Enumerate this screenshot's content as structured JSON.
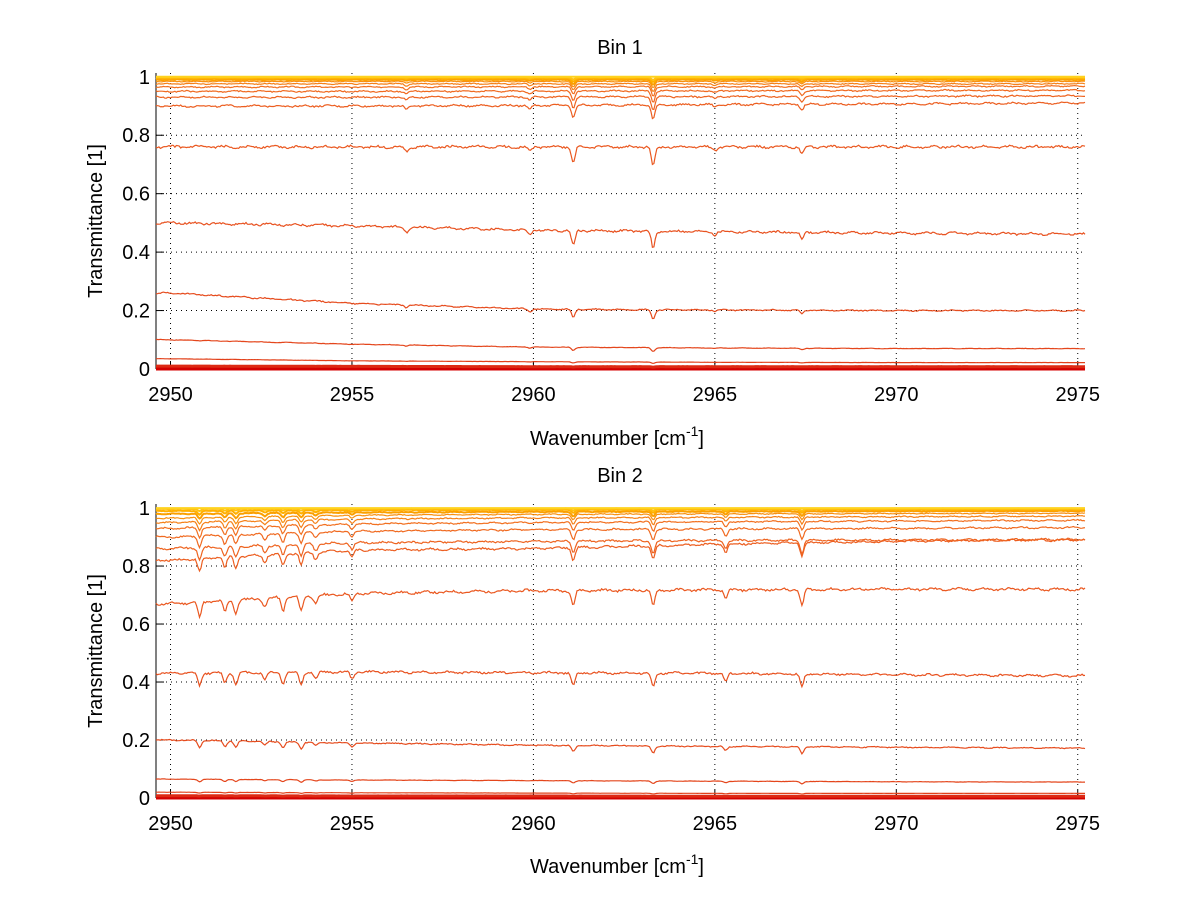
{
  "chart_data": [
    {
      "type": "line",
      "title": "Bin 1",
      "xlabel": "Wavenumber [cm",
      "xlabel_sup": "-1",
      "xlabel_end": "]",
      "ylabel": "Transmittance [1]",
      "xlim": [
        2949.6,
        2975.2
      ],
      "ylim": [
        0,
        1.013
      ],
      "xticks": [
        2950,
        2955,
        2960,
        2965,
        2970,
        2975
      ],
      "yticks": [
        0,
        0.2,
        0.4,
        0.6,
        0.8,
        1
      ],
      "ytick_labels": [
        "0",
        "0.2",
        "0.4",
        "0.6",
        "0.8",
        "1"
      ],
      "grid": true,
      "x_knots": [
        2950,
        2955,
        2960,
        2965,
        2970,
        2975
      ],
      "dips": [
        [
          2956.5,
          0.3
        ],
        [
          2959.9,
          0.3
        ],
        [
          2961.1,
          1.0
        ],
        [
          2963.3,
          1.2
        ],
        [
          2965.0,
          0.2
        ],
        [
          2967.4,
          0.45
        ]
      ],
      "series": [
        {
          "name": "s1",
          "color": "#ffd21e",
          "values": [
            1.0,
            1.0,
            1.0,
            1.0,
            1.0,
            1.0
          ]
        },
        {
          "name": "s2",
          "color": "#ffc010",
          "values": [
            0.998,
            0.998,
            0.998,
            0.998,
            0.998,
            0.998
          ]
        },
        {
          "name": "s3",
          "color": "#ffb000",
          "values": [
            0.995,
            0.995,
            0.995,
            0.995,
            0.995,
            0.995
          ]
        },
        {
          "name": "s4",
          "color": "#fba000",
          "values": [
            0.99,
            0.99,
            0.99,
            0.99,
            0.99,
            0.99
          ]
        },
        {
          "name": "s5",
          "color": "#f89010",
          "values": [
            0.984,
            0.984,
            0.984,
            0.984,
            0.984,
            0.984
          ]
        },
        {
          "name": "s6",
          "color": "#f58018",
          "values": [
            0.976,
            0.976,
            0.976,
            0.976,
            0.976,
            0.976
          ]
        },
        {
          "name": "s7",
          "color": "#f27020",
          "values": [
            0.965,
            0.965,
            0.966,
            0.966,
            0.967,
            0.968
          ]
        },
        {
          "name": "s8",
          "color": "#f06a20",
          "values": [
            0.95,
            0.95,
            0.951,
            0.952,
            0.953,
            0.954
          ]
        },
        {
          "name": "s9",
          "color": "#ee6420",
          "values": [
            0.93,
            0.93,
            0.931,
            0.932,
            0.933,
            0.935
          ]
        },
        {
          "name": "s10",
          "color": "#ec5e20",
          "values": [
            0.9,
            0.9,
            0.902,
            0.905,
            0.907,
            0.91
          ]
        },
        {
          "name": "s11",
          "color": "#ea5820",
          "values": [
            0.76,
            0.76,
            0.76,
            0.76,
            0.76,
            0.76
          ]
        },
        {
          "name": "s12",
          "color": "#e85220",
          "values": [
            0.5,
            0.49,
            0.475,
            0.47,
            0.465,
            0.462
          ]
        },
        {
          "name": "s13",
          "color": "#e64c1e",
          "values": [
            0.26,
            0.225,
            0.205,
            0.202,
            0.2,
            0.2
          ]
        },
        {
          "name": "s14",
          "color": "#e4461c",
          "values": [
            0.1,
            0.085,
            0.075,
            0.072,
            0.07,
            0.07
          ]
        },
        {
          "name": "s15",
          "color": "#e2401a",
          "values": [
            0.035,
            0.028,
            0.025,
            0.023,
            0.022,
            0.022
          ]
        },
        {
          "name": "s16",
          "color": "#dd2a14",
          "values": [
            0.01,
            0.009,
            0.008,
            0.008,
            0.008,
            0.008
          ]
        },
        {
          "name": "s17",
          "color": "#d40000",
          "values": [
            0.0,
            0.0,
            0.0,
            0.0,
            0.0,
            0.0
          ]
        }
      ]
    },
    {
      "type": "line",
      "title": "Bin 2",
      "xlabel": "Wavenumber [cm",
      "xlabel_sup": "-1",
      "xlabel_end": "]",
      "ylabel": "Transmittance [1]",
      "xlim": [
        2949.6,
        2975.2
      ],
      "ylim": [
        0,
        1.014
      ],
      "xticks": [
        2950,
        2955,
        2960,
        2965,
        2970,
        2975
      ],
      "yticks": [
        0,
        0.2,
        0.4,
        0.6,
        0.8,
        1
      ],
      "ytick_labels": [
        "0",
        "0.2",
        "0.4",
        "0.6",
        "0.8",
        "1"
      ],
      "grid": true,
      "x_knots": [
        2950,
        2955,
        2960,
        2965,
        2970,
        2975
      ],
      "dips": [
        [
          2950.8,
          0.9
        ],
        [
          2951.5,
          0.7
        ],
        [
          2951.8,
          0.8
        ],
        [
          2952.6,
          0.5
        ],
        [
          2953.1,
          0.8
        ],
        [
          2953.6,
          0.9
        ],
        [
          2954.0,
          0.5
        ],
        [
          2955.0,
          0.5
        ],
        [
          2961.1,
          0.9
        ],
        [
          2963.3,
          1.0
        ],
        [
          2965.3,
          0.6
        ],
        [
          2967.4,
          1.0
        ]
      ],
      "series": [
        {
          "name": "s1",
          "color": "#ffd21e",
          "values": [
            1.0,
            1.0,
            1.0,
            1.0,
            1.0,
            1.0
          ]
        },
        {
          "name": "s2",
          "color": "#ffc010",
          "values": [
            0.997,
            0.998,
            0.998,
            0.998,
            0.998,
            0.998
          ]
        },
        {
          "name": "s3",
          "color": "#ffb000",
          "values": [
            0.99,
            0.993,
            0.994,
            0.995,
            0.995,
            0.995
          ]
        },
        {
          "name": "s4",
          "color": "#fba000",
          "values": [
            0.98,
            0.985,
            0.987,
            0.988,
            0.989,
            0.99
          ]
        },
        {
          "name": "s5",
          "color": "#f89010",
          "values": [
            0.965,
            0.975,
            0.978,
            0.98,
            0.981,
            0.982
          ]
        },
        {
          "name": "s6",
          "color": "#f58018",
          "values": [
            0.95,
            0.962,
            0.966,
            0.968,
            0.97,
            0.972
          ]
        },
        {
          "name": "s7",
          "color": "#f27020",
          "values": [
            0.93,
            0.945,
            0.95,
            0.953,
            0.955,
            0.958
          ]
        },
        {
          "name": "s8",
          "color": "#f06a20",
          "values": [
            0.9,
            0.92,
            0.925,
            0.928,
            0.93,
            0.933
          ]
        },
        {
          "name": "s9",
          "color": "#ee6420",
          "values": [
            0.86,
            0.88,
            0.885,
            0.888,
            0.89,
            0.892
          ]
        },
        {
          "name": "s10",
          "color": "#ec5e20",
          "values": [
            0.82,
            0.855,
            0.86,
            0.875,
            0.885,
            0.89
          ]
        },
        {
          "name": "s11",
          "color": "#ea5820",
          "values": [
            0.67,
            0.705,
            0.715,
            0.718,
            0.72,
            0.72
          ]
        },
        {
          "name": "s12",
          "color": "#e85220",
          "values": [
            0.43,
            0.435,
            0.432,
            0.43,
            0.425,
            0.422
          ]
        },
        {
          "name": "s13",
          "color": "#e64c1e",
          "values": [
            0.2,
            0.19,
            0.182,
            0.178,
            0.175,
            0.172
          ]
        },
        {
          "name": "s14",
          "color": "#e4461c",
          "values": [
            0.065,
            0.062,
            0.06,
            0.058,
            0.056,
            0.055
          ]
        },
        {
          "name": "s15",
          "color": "#e2401a",
          "values": [
            0.02,
            0.018,
            0.017,
            0.016,
            0.016,
            0.016
          ]
        },
        {
          "name": "s16",
          "color": "#dd2a14",
          "values": [
            0.008,
            0.007,
            0.007,
            0.006,
            0.006,
            0.006
          ]
        },
        {
          "name": "s17",
          "color": "#d40000",
          "values": [
            0.0,
            0.0,
            0.0,
            0.0,
            0.0,
            0.0
          ]
        }
      ]
    }
  ]
}
